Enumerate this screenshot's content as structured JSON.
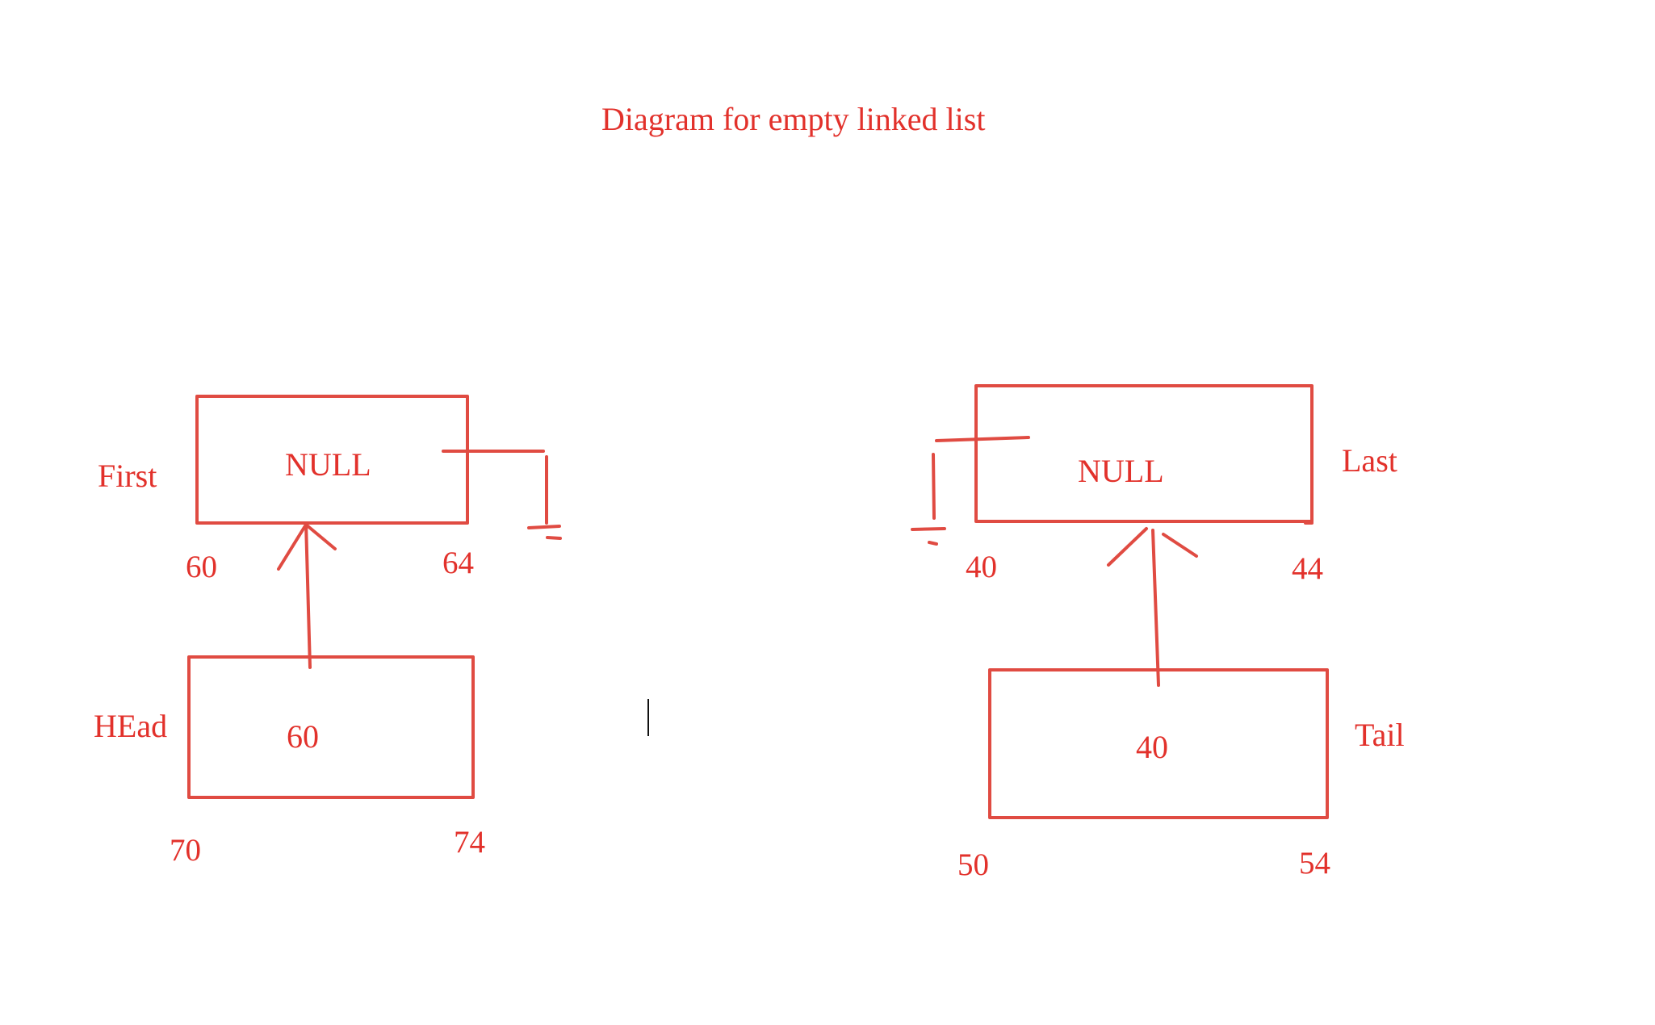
{
  "title": "Diagram for empty linked list",
  "colors": {
    "ink": "#e04b42",
    "text": "#e2312b",
    "cursor": "#111111"
  },
  "left": {
    "node": {
      "label": "First",
      "value": "NULL",
      "addr_start": "60",
      "addr_end": "64"
    },
    "pointer": {
      "label": "HEad",
      "value": "60",
      "addr_start": "70",
      "addr_end": "74"
    }
  },
  "right": {
    "node": {
      "label": "Last",
      "value": "NULL",
      "addr_start": "40",
      "addr_end": "44"
    },
    "pointer": {
      "label": "Tail",
      "value": "40",
      "addr_start": "50",
      "addr_end": "54"
    }
  }
}
